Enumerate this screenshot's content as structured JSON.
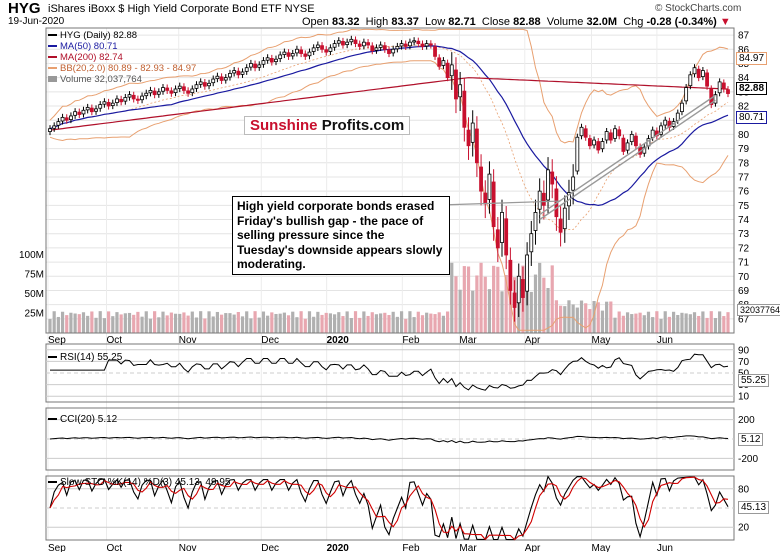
{
  "header": {
    "ticker": "HYG",
    "description": "iShares iBoxx $ High Yield Corporate Bond ETF",
    "exchange": "NYSE",
    "date": "19-Jun-2020",
    "open_label": "Open",
    "open": "83.32",
    "high_label": "High",
    "high": "83.37",
    "low_label": "Low",
    "low": "82.71",
    "close_label": "Close",
    "close": "82.88",
    "volume_label": "Volume",
    "volume": "32.0M",
    "chg_label": "Chg",
    "chg": "-0.28 (-0.34%)",
    "brand": "© StockCharts.com"
  },
  "legend": {
    "price": "HYG (Daily) 82.88",
    "ma50": "MA(50) 80.71",
    "ma200": "MA(200) 82.74",
    "bb": "BB(20,2.0) 80.89 - 82.93 - 84.97",
    "volume": "Volume 32,037,764"
  },
  "colors": {
    "ma50": "#1a1aa0",
    "ma200": "#b0102a",
    "bb": "#e8a070",
    "up": "#000000",
    "down": "#c8102e",
    "rsi_fill": "#3a7a3a",
    "cci_pos": "#3a7a3a",
    "cci_neg": "#8a3a3a"
  },
  "logo": {
    "part1": "Sunshine",
    "part2": "Profits.com"
  },
  "annotation": "High yield corporate bonds erased Friday's bullish gap - the pace of selling pressure since the Tuesday's downside appears slowly moderating.",
  "price_labels": {
    "bb_upper": "84.97",
    "close": "82.88",
    "ma50": "80.71",
    "volume": "32037764"
  },
  "rsi": {
    "label": "RSI(14) 55.25",
    "value_tag": "55.25"
  },
  "cci": {
    "label": "CCI(20) 5.12",
    "value_tag": "5.12"
  },
  "sto": {
    "label": "Slow STO %K(14) %D(3) 45.13, 49.95",
    "value_tag": "45.13"
  },
  "chart_data": {
    "type": "candlestick",
    "x_months": [
      "Sep",
      "Oct",
      "Nov",
      "Dec",
      "2020",
      "Feb",
      "Mar",
      "Apr",
      "May",
      "Jun"
    ],
    "y_ticks": [
      67,
      68,
      69,
      70,
      71,
      72,
      73,
      74,
      75,
      76,
      77,
      78,
      79,
      80,
      81,
      82,
      83,
      84,
      85,
      86,
      87
    ],
    "ylim": [
      66,
      87.5
    ],
    "volume_ticks": [
      "25M",
      "50M",
      "75M",
      "100M"
    ],
    "rsi_ticks": [
      10,
      30,
      50,
      70,
      90
    ],
    "cci_ticks": [
      -200,
      0,
      200
    ],
    "sto_ticks": [
      20,
      50,
      80
    ],
    "closes": [
      80.4,
      80.6,
      80.9,
      81.2,
      81.0,
      81.3,
      81.6,
      81.4,
      81.7,
      81.9,
      81.6,
      81.8,
      82.1,
      82.3,
      82.0,
      82.2,
      82.5,
      82.3,
      82.6,
      82.8,
      82.5,
      82.4,
      82.7,
      82.9,
      83.1,
      82.8,
      83.0,
      83.3,
      83.1,
      82.9,
      83.2,
      83.4,
      83.1,
      82.9,
      83.2,
      83.5,
      83.7,
      83.4,
      83.6,
      83.9,
      84.1,
      83.8,
      84.0,
      84.3,
      84.5,
      84.2,
      84.4,
      84.7,
      85.0,
      84.7,
      84.9,
      85.2,
      85.4,
      85.1,
      85.3,
      85.6,
      85.8,
      85.5,
      85.7,
      86.0,
      85.7,
      85.5,
      85.8,
      86.1,
      86.3,
      86.0,
      85.8,
      86.1,
      86.4,
      86.6,
      86.3,
      86.5,
      86.7,
      86.4,
      86.2,
      86.5,
      86.3,
      85.9,
      86.1,
      86.3,
      86.0,
      85.7,
      86.0,
      86.2,
      86.4,
      86.2,
      86.5,
      86.6,
      86.4,
      86.2,
      86.4,
      86.3,
      85.5,
      84.8,
      85.2,
      84.0,
      84.9,
      82.5,
      83.5,
      80.5,
      79.2,
      80.8,
      78.0,
      76.0,
      75.1,
      77.2,
      73.5,
      72.0,
      74.5,
      71.5,
      69.0,
      67.8,
      70.0,
      68.5,
      71.5,
      73.0,
      74.5,
      76.0,
      75.0,
      77.5,
      76.5,
      74.2,
      73.1,
      74.8,
      75.9,
      77.0,
      79.8,
      80.5,
      79.8,
      79.2,
      79.6,
      78.9,
      79.5,
      80.2,
      79.6,
      80.4,
      79.9,
      78.8,
      79.4,
      80.0,
      79.2,
      78.6,
      79.1,
      79.7,
      80.3,
      79.9,
      80.6,
      81.0,
      80.5,
      80.9,
      81.5,
      82.2,
      83.3,
      84.2,
      84.7,
      84.0,
      84.5,
      83.4,
      82.1,
      82.8,
      83.7,
      83.2,
      82.88
    ]
  }
}
